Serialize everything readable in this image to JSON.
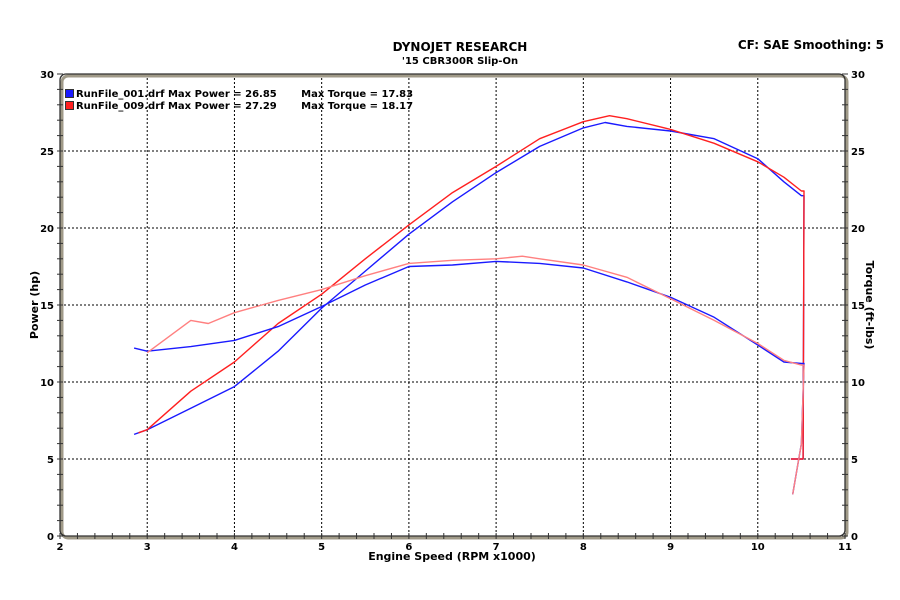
{
  "header": {
    "title": "DYNOJET RESEARCH",
    "subtitle": "'15 CBR300R Slip-On",
    "info": "CF: SAE  Smoothing: 5"
  },
  "legend": [
    {
      "file": "RunFile_001.drf",
      "max_power_label": "Max Power =",
      "max_power": "26.85",
      "max_torque_label": "Max Torque =",
      "max_torque": "17.83",
      "color": "#1a1aff"
    },
    {
      "file": "RunFile_009.drf",
      "max_power_label": "Max Power =",
      "max_power": "27.29",
      "max_torque_label": "Max Torque =",
      "max_torque": "18.17",
      "color": "#ff2020"
    }
  ],
  "axes": {
    "x_label": "Engine Speed (RPM x1000)",
    "y_left_label": "Power (hp)",
    "y_right_label": "Torque (ft-lbs)",
    "x_ticks": [
      "2",
      "3",
      "4",
      "5",
      "6",
      "7",
      "8",
      "9",
      "10",
      "11"
    ],
    "y_ticks": [
      "0",
      "5",
      "10",
      "15",
      "20",
      "25",
      "30"
    ]
  },
  "chart_data": {
    "type": "line",
    "title": "DYNOJET RESEARCH",
    "subtitle": "'15 CBR300R Slip-On",
    "annotation": "CF: SAE  Smoothing: 5",
    "xlabel": "Engine Speed (RPM x1000)",
    "ylabel": "Power (hp)",
    "y2label": "Torque (ft-lbs)",
    "xlim": [
      2,
      11
    ],
    "ylim": [
      0,
      30
    ],
    "y2lim": [
      0,
      30
    ],
    "grid": true,
    "legend_position": "top-left",
    "series": [
      {
        "name": "RunFile_001.drf Power (hp)",
        "color": "#1a1aff",
        "axis": "left",
        "x": [
          2.85,
          3.0,
          3.5,
          4.0,
          4.5,
          5.0,
          5.5,
          6.0,
          6.5,
          7.0,
          7.5,
          8.0,
          8.25,
          8.5,
          9.0,
          9.5,
          10.0,
          10.3,
          10.5
        ],
        "y": [
          6.6,
          6.9,
          8.3,
          9.7,
          12.0,
          14.8,
          17.2,
          19.6,
          21.7,
          23.6,
          25.3,
          26.5,
          26.85,
          26.6,
          26.3,
          25.8,
          24.5,
          23.0,
          22.1
        ]
      },
      {
        "name": "RunFile_009.drf Power (hp)",
        "color": "#ff2020",
        "axis": "left",
        "x": [
          2.9,
          3.0,
          3.5,
          4.0,
          4.5,
          5.0,
          5.5,
          6.0,
          6.5,
          7.0,
          7.5,
          8.0,
          8.3,
          8.5,
          9.0,
          9.5,
          10.0,
          10.3,
          10.5
        ],
        "y": [
          6.7,
          6.9,
          9.4,
          11.3,
          13.8,
          15.7,
          18.0,
          20.2,
          22.3,
          24.0,
          25.8,
          26.9,
          27.29,
          27.1,
          26.4,
          25.5,
          24.3,
          23.3,
          22.4
        ]
      },
      {
        "name": "RunFile_001.drf Torque (ft-lbs)",
        "color": "#1a1aff",
        "axis": "right",
        "x": [
          2.85,
          3.0,
          3.5,
          4.0,
          4.5,
          5.0,
          5.5,
          6.0,
          6.5,
          7.0,
          7.5,
          8.0,
          8.5,
          9.0,
          9.5,
          10.0,
          10.3,
          10.5
        ],
        "y": [
          12.2,
          12.0,
          12.3,
          12.7,
          13.6,
          14.9,
          16.3,
          17.5,
          17.6,
          17.83,
          17.7,
          17.4,
          16.5,
          15.5,
          14.2,
          12.4,
          11.3,
          11.2
        ]
      },
      {
        "name": "RunFile_009.drf Torque (ft-lbs)",
        "color": "#ff8080",
        "axis": "right",
        "x": [
          3.0,
          3.5,
          3.7,
          4.0,
          4.5,
          5.0,
          5.5,
          6.0,
          6.5,
          7.0,
          7.3,
          7.5,
          8.0,
          8.5,
          9.0,
          9.5,
          10.0,
          10.3,
          10.5
        ],
        "y": [
          11.9,
          14.0,
          13.8,
          14.5,
          15.3,
          16.0,
          16.9,
          17.7,
          17.9,
          18.0,
          18.17,
          18.0,
          17.6,
          16.8,
          15.4,
          14.0,
          12.5,
          11.4,
          11.1
        ]
      }
    ]
  }
}
